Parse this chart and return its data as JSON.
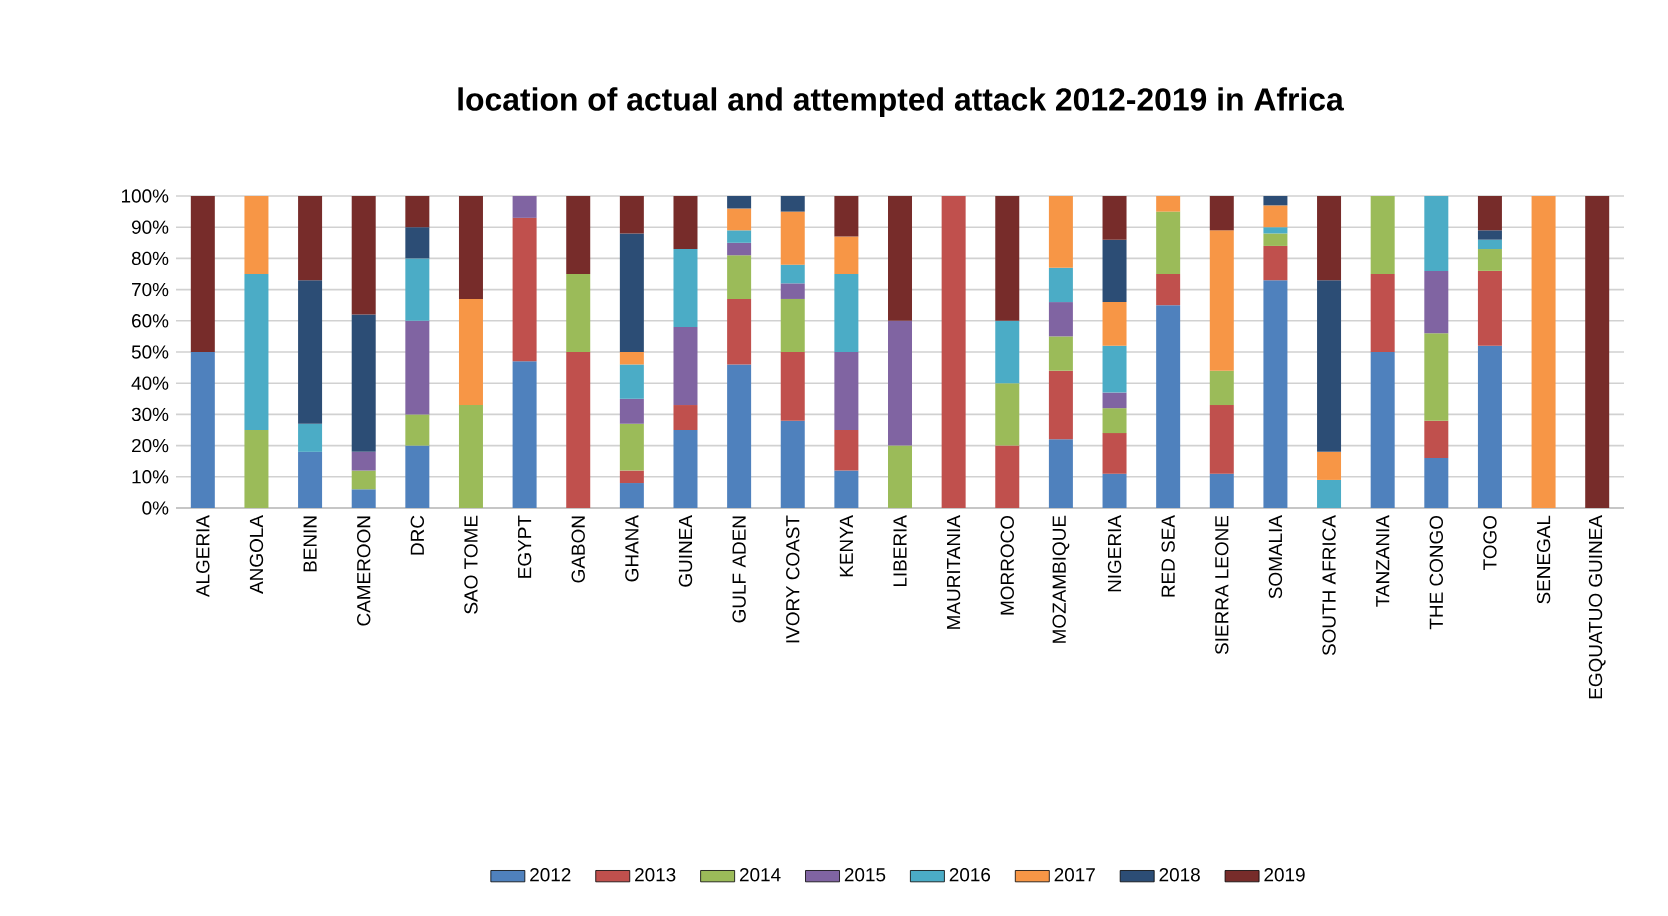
{
  "chart_data": {
    "type": "bar",
    "stacked": true,
    "title": "location of actual and attempted attack 2012-2019 in Africa",
    "categories": [
      "ALGERIA",
      "ANGOLA",
      "BENIN",
      "CAMEROON",
      "DRC",
      "SAO TOME",
      "EGYPT",
      "GABON",
      "GHANA",
      "GUINEA",
      "GULF ADEN",
      "IVORY COAST",
      "KENYA",
      "LIBERIA",
      "MAURITANIA",
      "MORROCO",
      "MOZAMBIQUE",
      "NIGERIA",
      "RED SEA",
      "SIERRA LEONE",
      "SOMALIA",
      "SOUTH AFRICA",
      "TANZANIA",
      "THE CONGO",
      "TOGO",
      "SENEGAL",
      "EGQUATUO GUINEA"
    ],
    "series": [
      {
        "name": "2012",
        "color": "#4f81bd",
        "values": [
          50,
          null,
          18,
          6,
          20,
          null,
          47,
          null,
          8,
          25,
          46,
          28,
          12,
          null,
          null,
          null,
          22,
          11,
          65,
          11,
          73,
          null,
          50,
          16,
          52,
          null,
          null
        ]
      },
      {
        "name": "2013",
        "color": "#c0504d",
        "values": [
          null,
          null,
          null,
          null,
          null,
          null,
          46,
          50,
          4,
          8,
          21,
          22,
          13,
          null,
          100,
          20,
          22,
          13,
          10,
          22,
          11,
          null,
          25,
          12,
          24,
          null,
          null
        ]
      },
      {
        "name": "2014",
        "color": "#9bbb59",
        "values": [
          null,
          25,
          null,
          6,
          10,
          33,
          null,
          25,
          15,
          null,
          14,
          17,
          null,
          20,
          null,
          20,
          11,
          8,
          20,
          11,
          4,
          null,
          25,
          28,
          7,
          null,
          null
        ]
      },
      {
        "name": "2015",
        "color": "#8064a2",
        "values": [
          null,
          null,
          null,
          6,
          30,
          null,
          7,
          null,
          8,
          25,
          4,
          5,
          25,
          40,
          null,
          null,
          11,
          5,
          null,
          null,
          null,
          null,
          null,
          20,
          null,
          null,
          null
        ]
      },
      {
        "name": "2016",
        "color": "#4bacc6",
        "values": [
          null,
          50,
          9,
          null,
          20,
          null,
          null,
          null,
          11,
          25,
          4,
          6,
          25,
          null,
          null,
          20,
          11,
          15,
          null,
          null,
          2,
          9,
          null,
          24,
          3,
          null,
          null
        ]
      },
      {
        "name": "2017",
        "color": "#f79646",
        "values": [
          null,
          25,
          null,
          null,
          null,
          34,
          null,
          null,
          4,
          null,
          7,
          17,
          12,
          null,
          null,
          null,
          23,
          14,
          5,
          45,
          7,
          9,
          null,
          null,
          null,
          100,
          null
        ]
      },
      {
        "name": "2018",
        "color": "#2c4d75",
        "values": [
          null,
          null,
          46,
          44,
          10,
          null,
          null,
          null,
          38,
          null,
          4,
          5,
          null,
          null,
          null,
          null,
          null,
          20,
          null,
          null,
          3,
          55,
          null,
          null,
          3,
          null,
          null
        ]
      },
      {
        "name": "2019",
        "color": "#772c2a",
        "values": [
          50,
          null,
          27,
          38,
          10,
          33,
          null,
          25,
          12,
          17,
          null,
          null,
          13,
          40,
          null,
          40,
          null,
          14,
          null,
          11,
          null,
          27,
          null,
          null,
          11,
          null,
          100
        ]
      }
    ],
    "ylim": [
      0,
      100
    ],
    "yticks": [
      {
        "value": 0,
        "label": "0%"
      },
      {
        "value": 10,
        "label": "10%"
      },
      {
        "value": 20,
        "label": "20%"
      },
      {
        "value": 30,
        "label": "30%"
      },
      {
        "value": 40,
        "label": "40%"
      },
      {
        "value": 50,
        "label": "50%"
      },
      {
        "value": 60,
        "label": "60%"
      },
      {
        "value": 70,
        "label": "70%"
      },
      {
        "value": 80,
        "label": "80%"
      },
      {
        "value": 90,
        "label": "90%"
      },
      {
        "value": 100,
        "label": "100%"
      }
    ],
    "grid": "y",
    "legend": "bottom"
  }
}
